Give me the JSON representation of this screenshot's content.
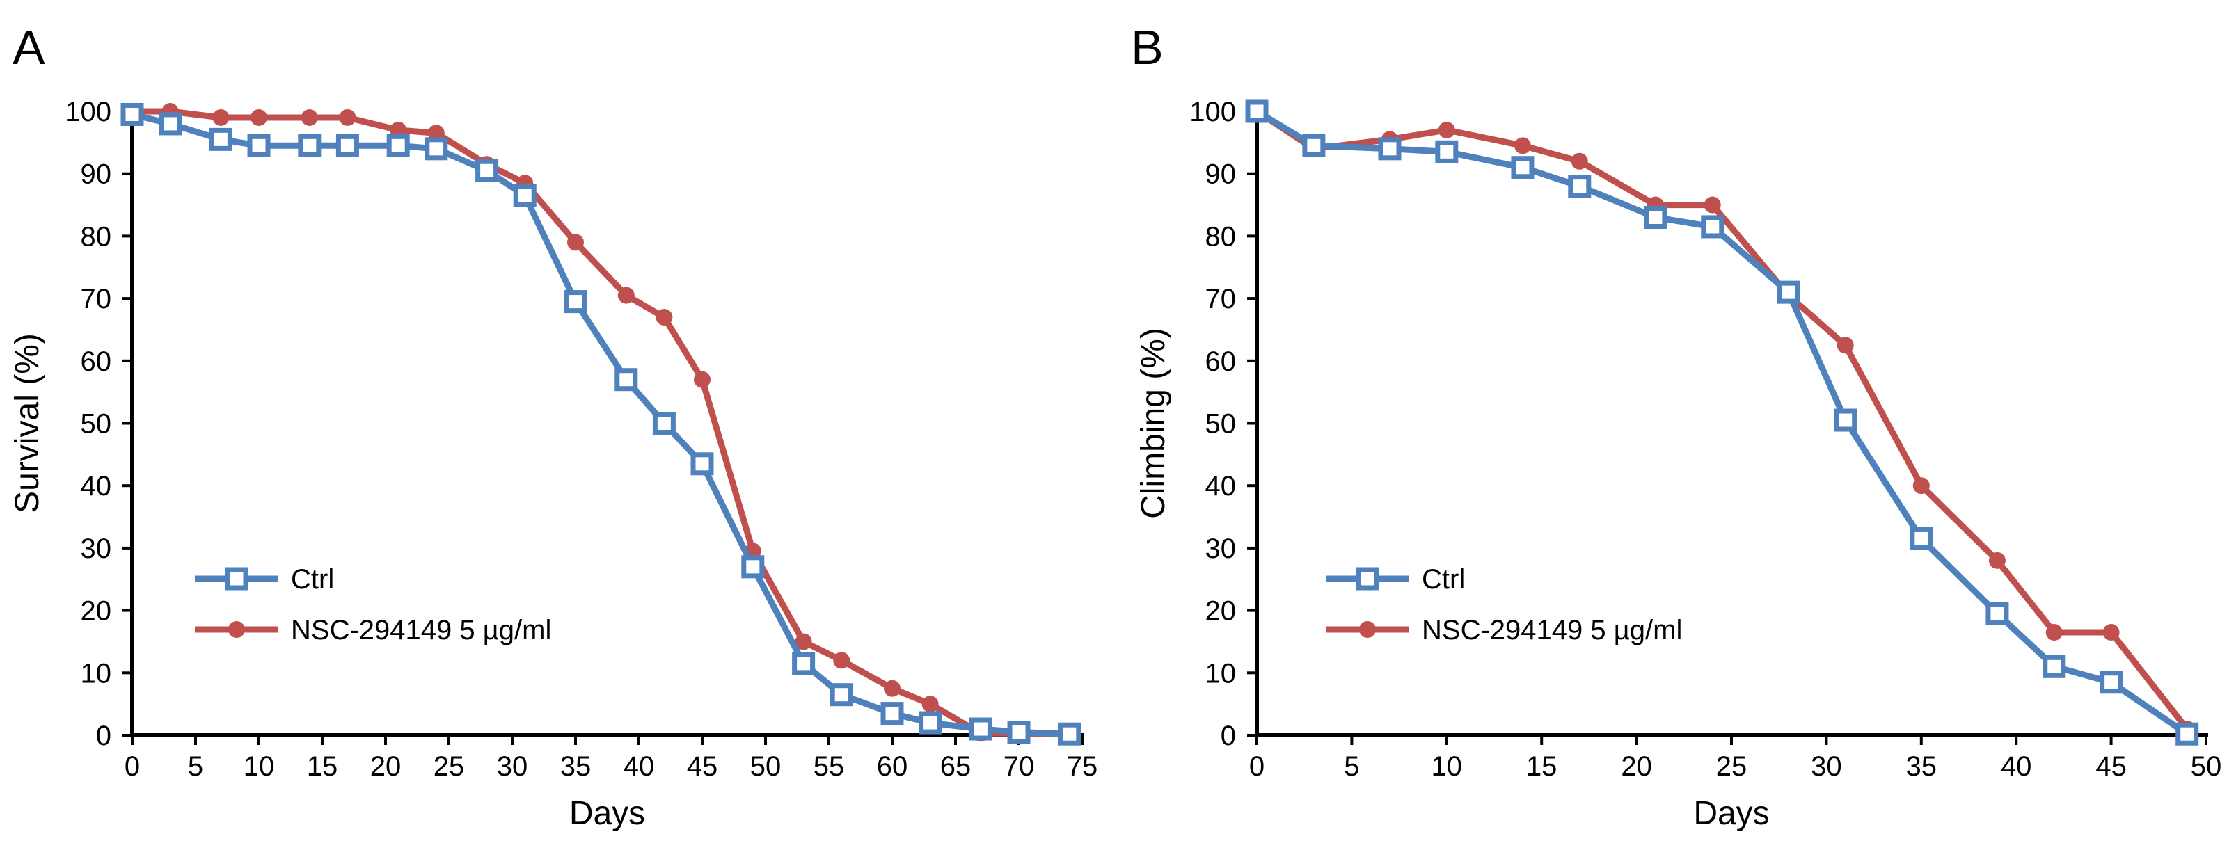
{
  "figure": {
    "panels": [
      "A",
      "B"
    ]
  },
  "styles": {
    "ctrl_color": "#4f81bd",
    "nsc_color": "#c0504d"
  },
  "chart_data": [
    {
      "type": "line",
      "panel": "A",
      "title": "",
      "xlabel": "Days",
      "ylabel": "Survival  (%)",
      "xlim": [
        0,
        75
      ],
      "ylim": [
        0,
        100
      ],
      "xticks": [
        0,
        5,
        10,
        15,
        20,
        25,
        30,
        35,
        40,
        45,
        50,
        55,
        60,
        65,
        70,
        75
      ],
      "yticks": [
        0,
        10,
        20,
        30,
        40,
        50,
        60,
        70,
        80,
        90,
        100
      ],
      "legend_position": "lower-left",
      "grid": false,
      "series": [
        {
          "name": "Ctrl",
          "marker": "open-square",
          "x": [
            0,
            3,
            7,
            10,
            14,
            17,
            21,
            24,
            28,
            31,
            35,
            39,
            42,
            45,
            49,
            53,
            56,
            60,
            63,
            67,
            70,
            74
          ],
          "values": [
            99.5,
            98,
            95.5,
            94.5,
            94.5,
            94.5,
            94.5,
            94,
            90.5,
            86.5,
            69.5,
            57,
            50,
            43.5,
            27,
            11.5,
            6.5,
            3.5,
            2,
            1,
            0.5,
            0.2
          ]
        },
        {
          "name": "NSC-294149 5 µg/ml",
          "marker": "filled-circle",
          "x": [
            0,
            3,
            7,
            10,
            14,
            17,
            21,
            24,
            28,
            31,
            35,
            39,
            42,
            45,
            49,
            53,
            56,
            60,
            63,
            67,
            70,
            74
          ],
          "values": [
            100,
            100,
            99,
            99,
            99,
            99,
            97,
            96.5,
            91.5,
            88.5,
            79,
            70.5,
            67,
            57,
            29.5,
            15,
            12,
            7.5,
            5,
            0.3,
            0.3,
            0.2
          ]
        }
      ]
    },
    {
      "type": "line",
      "panel": "B",
      "title": "",
      "xlabel": "Days",
      "ylabel": "Climbing  (%)",
      "xlim": [
        0,
        50
      ],
      "ylim": [
        0,
        100
      ],
      "xticks": [
        0,
        5,
        10,
        15,
        20,
        25,
        30,
        35,
        40,
        45,
        50
      ],
      "yticks": [
        0,
        10,
        20,
        30,
        40,
        50,
        60,
        70,
        80,
        90,
        100
      ],
      "legend_position": "lower-left",
      "grid": false,
      "series": [
        {
          "name": "Ctrl",
          "marker": "open-square",
          "x": [
            0,
            3,
            7,
            10,
            14,
            17,
            21,
            24,
            28,
            31,
            35,
            39,
            42,
            45,
            49
          ],
          "values": [
            100,
            94.5,
            94,
            93.5,
            91,
            88,
            83,
            81.5,
            71,
            50.5,
            31.5,
            19.5,
            11,
            8.5,
            0.2
          ]
        },
        {
          "name": "NSC-294149 5 µg/ml",
          "marker": "filled-circle",
          "x": [
            0,
            3,
            7,
            10,
            14,
            17,
            21,
            24,
            28,
            31,
            35,
            39,
            42,
            45,
            49
          ],
          "values": [
            100,
            94,
            95.5,
            97,
            94.5,
            92,
            85,
            85,
            70.5,
            62.5,
            40,
            28,
            16.5,
            16.5,
            1
          ]
        }
      ]
    }
  ]
}
